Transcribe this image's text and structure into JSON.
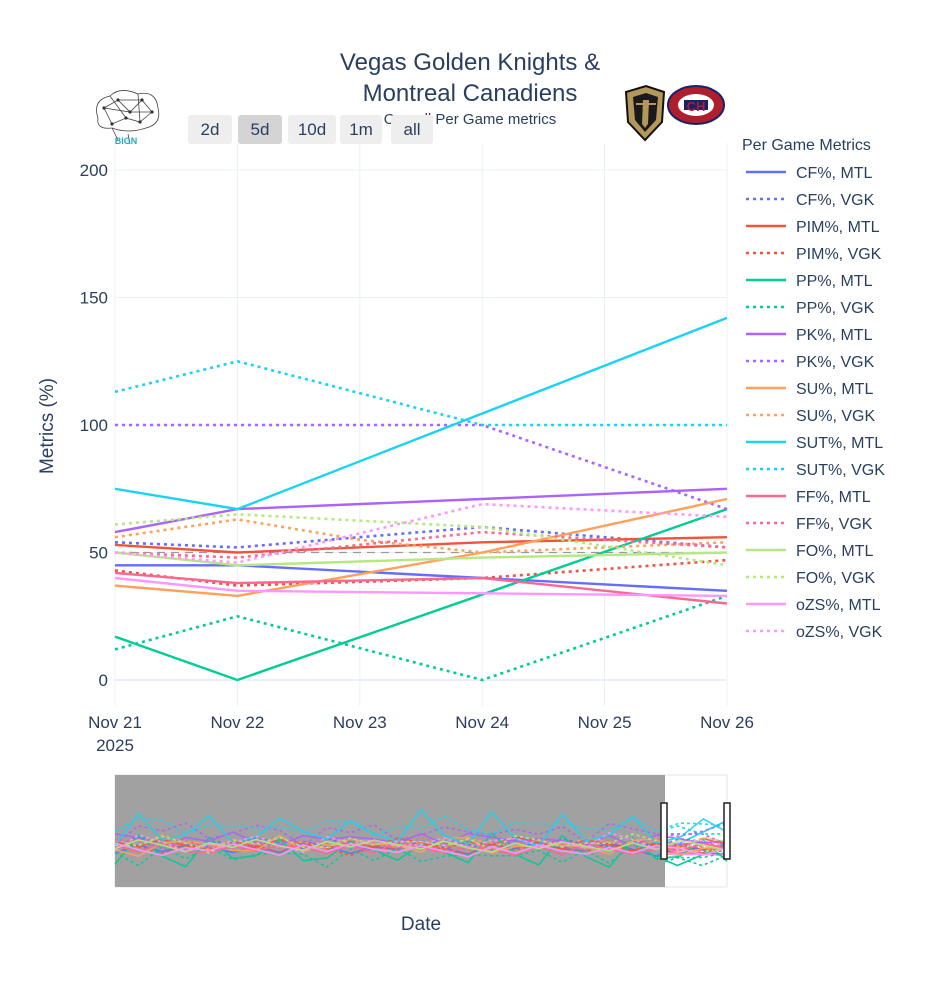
{
  "title_line1": "Vegas Golden Knights &",
  "title_line2": "Montreal Canadiens",
  "subtitle": "Overall Per Game metrics",
  "logo_text": "BIGN",
  "team_logos": {
    "vgk": "VGK logo",
    "mtl": "CH"
  },
  "range_buttons": [
    {
      "label": "2d",
      "active": false
    },
    {
      "label": "5d",
      "active": true
    },
    {
      "label": "10d",
      "active": false
    },
    {
      "label": "1m",
      "active": false
    },
    {
      "label": "all",
      "active": false
    }
  ],
  "legend_title": "Per Game Metrics",
  "xaxis_title": "Date",
  "colors": {
    "cf": "#636efa",
    "pim": "#ef553b",
    "pp": "#00cc96",
    "pk": "#ab63fa",
    "su": "#ffa15a",
    "sut": "#19d3f3",
    "ff": "#ff6692",
    "fo": "#b6e880",
    "ozs": "#ff97ff",
    "text": "#2a3f5f",
    "grid": "#ebf0f8",
    "rangeslider_bg": "#999999"
  },
  "chart_data": {
    "type": "line",
    "title": "Vegas Golden Knights & Montreal Canadiens",
    "subtitle": "Overall Per Game metrics",
    "ylabel": "Metrics (%)",
    "xlabel": "Date",
    "ylim": [
      -10,
      210
    ],
    "xlim": [
      0,
      5
    ],
    "x": [
      0,
      1,
      2,
      3,
      4,
      5
    ],
    "x_tick_labels": [
      {
        "value": 0,
        "line1": "Nov 21",
        "line2": "2025"
      },
      {
        "value": 1,
        "line1": "Nov 22",
        "line2": ""
      },
      {
        "value": 2,
        "line1": "Nov 23",
        "line2": ""
      },
      {
        "value": 3,
        "line1": "Nov 24",
        "line2": ""
      },
      {
        "value": 4,
        "line1": "Nov 25",
        "line2": ""
      },
      {
        "value": 5,
        "line1": "Nov 26",
        "line2": ""
      }
    ],
    "y_ticks": [
      0,
      50,
      100,
      150,
      200
    ],
    "reference_line": 50,
    "series": [
      {
        "name": "CF%, MTL",
        "color": "#636efa",
        "dash": false,
        "points": [
          [
            0,
            45
          ],
          [
            1,
            45
          ],
          [
            3,
            40
          ],
          [
            5,
            35
          ]
        ]
      },
      {
        "name": "CF%, VGK",
        "color": "#636efa",
        "dash": true,
        "points": [
          [
            0,
            54
          ],
          [
            1,
            52
          ],
          [
            3,
            60
          ],
          [
            5,
            52
          ]
        ]
      },
      {
        "name": "PIM%, MTL",
        "color": "#ef553b",
        "dash": false,
        "points": [
          [
            0,
            53
          ],
          [
            1,
            50
          ],
          [
            3,
            54
          ],
          [
            5,
            56
          ]
        ]
      },
      {
        "name": "PIM%, VGK",
        "color": "#ef553b",
        "dash": true,
        "points": [
          [
            0,
            43
          ],
          [
            1,
            37
          ],
          [
            3,
            40
          ],
          [
            5,
            47
          ]
        ]
      },
      {
        "name": "PP%, MTL",
        "color": "#00cc96",
        "dash": false,
        "points": [
          [
            0,
            17
          ],
          [
            1,
            0
          ],
          [
            5,
            67
          ]
        ]
      },
      {
        "name": "PP%, VGK",
        "color": "#00cc96",
        "dash": true,
        "points": [
          [
            0,
            12
          ],
          [
            1,
            25
          ],
          [
            3,
            0
          ],
          [
            5,
            33
          ]
        ]
      },
      {
        "name": "PK%, MTL",
        "color": "#ab63fa",
        "dash": false,
        "points": [
          [
            0,
            58
          ],
          [
            1,
            67
          ],
          [
            3,
            71
          ],
          [
            5,
            75
          ]
        ]
      },
      {
        "name": "PK%, VGK",
        "color": "#ab63fa",
        "dash": true,
        "points": [
          [
            0,
            100
          ],
          [
            1,
            100
          ],
          [
            3,
            100
          ],
          [
            5,
            67
          ]
        ]
      },
      {
        "name": "SU%, MTL",
        "color": "#ffa15a",
        "dash": false,
        "points": [
          [
            0,
            37
          ],
          [
            1,
            33
          ],
          [
            3,
            50
          ],
          [
            5,
            71
          ]
        ]
      },
      {
        "name": "SU%, VGK",
        "color": "#ffa15a",
        "dash": true,
        "points": [
          [
            0,
            56
          ],
          [
            1,
            63
          ],
          [
            2,
            55
          ],
          [
            3,
            50
          ],
          [
            5,
            54
          ]
        ]
      },
      {
        "name": "SUT%, MTL",
        "color": "#19d3f3",
        "dash": false,
        "points": [
          [
            0,
            75
          ],
          [
            1,
            67
          ],
          [
            5,
            142
          ]
        ]
      },
      {
        "name": "SUT%, VGK",
        "color": "#19d3f3",
        "dash": true,
        "points": [
          [
            0,
            113
          ],
          [
            1,
            125
          ],
          [
            3,
            100
          ],
          [
            5,
            100
          ]
        ]
      },
      {
        "name": "FF%, MTL",
        "color": "#ff6692",
        "dash": false,
        "points": [
          [
            0,
            42
          ],
          [
            1,
            38
          ],
          [
            3,
            40
          ],
          [
            5,
            30
          ]
        ]
      },
      {
        "name": "FF%, VGK",
        "color": "#ff6692",
        "dash": true,
        "points": [
          [
            0,
            50
          ],
          [
            1,
            48
          ],
          [
            3,
            58
          ],
          [
            5,
            52
          ]
        ]
      },
      {
        "name": "FO%, MTL",
        "color": "#b6e880",
        "dash": false,
        "points": [
          [
            0,
            50
          ],
          [
            1,
            45
          ],
          [
            3,
            48
          ],
          [
            5,
            50
          ]
        ]
      },
      {
        "name": "FO%, VGK",
        "color": "#b6e880",
        "dash": true,
        "points": [
          [
            0,
            61
          ],
          [
            1,
            65
          ],
          [
            3,
            60
          ],
          [
            5,
            45
          ]
        ]
      },
      {
        "name": "oZS%, MTL",
        "color": "#ff97ff",
        "dash": false,
        "points": [
          [
            0,
            40
          ],
          [
            1,
            35
          ],
          [
            3,
            34
          ],
          [
            5,
            33
          ]
        ]
      },
      {
        "name": "oZS%, VGK",
        "color": "#ff97ff",
        "dash": true,
        "points": [
          [
            0,
            50
          ],
          [
            1,
            46
          ],
          [
            3,
            69
          ],
          [
            5,
            64
          ]
        ]
      }
    ],
    "rangeslider": {
      "visible": true,
      "selected_days": 5
    }
  }
}
